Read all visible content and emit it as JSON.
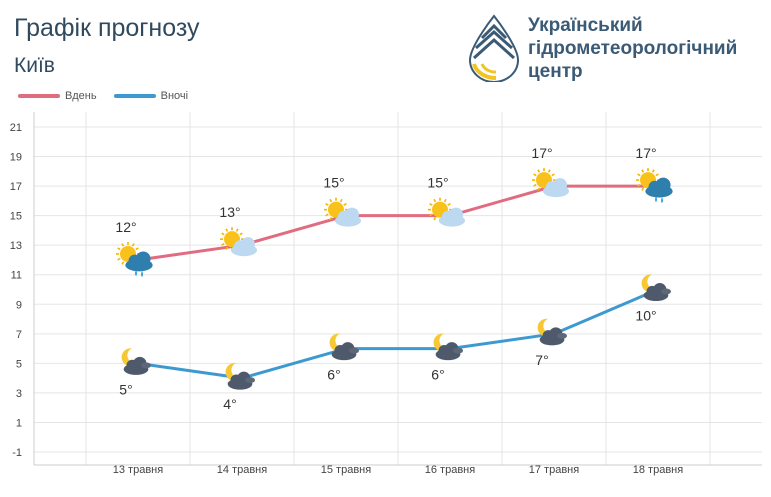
{
  "header": {
    "title": "Графік прогнозу",
    "city": "Київ",
    "org_name": [
      "Український",
      "гідрометеорологічний",
      "центр"
    ]
  },
  "colors": {
    "day": "#e06c80",
    "night": "#3d9ad1",
    "grid": "#e5e5e5",
    "text": "#2f4a5f"
  },
  "chart_data": {
    "type": "line",
    "categories": [
      "13 травня",
      "14 травня",
      "15 травня",
      "16 травня",
      "17 травня",
      "18 травня"
    ],
    "series": [
      {
        "name": "Вдень",
        "values": [
          12,
          13,
          15,
          15,
          17,
          17
        ],
        "labels": [
          "12°",
          "13°",
          "15°",
          "15°",
          "17°",
          "17°"
        ],
        "icons": [
          "sun-rain-icon",
          "sun-cloud-icon",
          "sun-cloud-icon",
          "sun-cloud-icon",
          "sun-cloud-icon",
          "sun-rain-icon"
        ]
      },
      {
        "name": "Вночі",
        "values": [
          5,
          4,
          6,
          6,
          7,
          10
        ],
        "labels": [
          "5°",
          "4°",
          "6°",
          "6°",
          "7°",
          "10°"
        ],
        "icons": [
          "moon-cloud-icon",
          "moon-cloud-icon",
          "moon-cloud-icon",
          "moon-cloud-icon",
          "moon-cloud-icon",
          "moon-cloud-icon"
        ]
      }
    ],
    "yticks": [
      "21",
      "19",
      "17",
      "15",
      "13",
      "11",
      "9",
      "7",
      "5",
      "3",
      "1",
      "-1"
    ],
    "ylim": [
      -1,
      21
    ],
    "grid": true,
    "legend_position": "top-left"
  }
}
